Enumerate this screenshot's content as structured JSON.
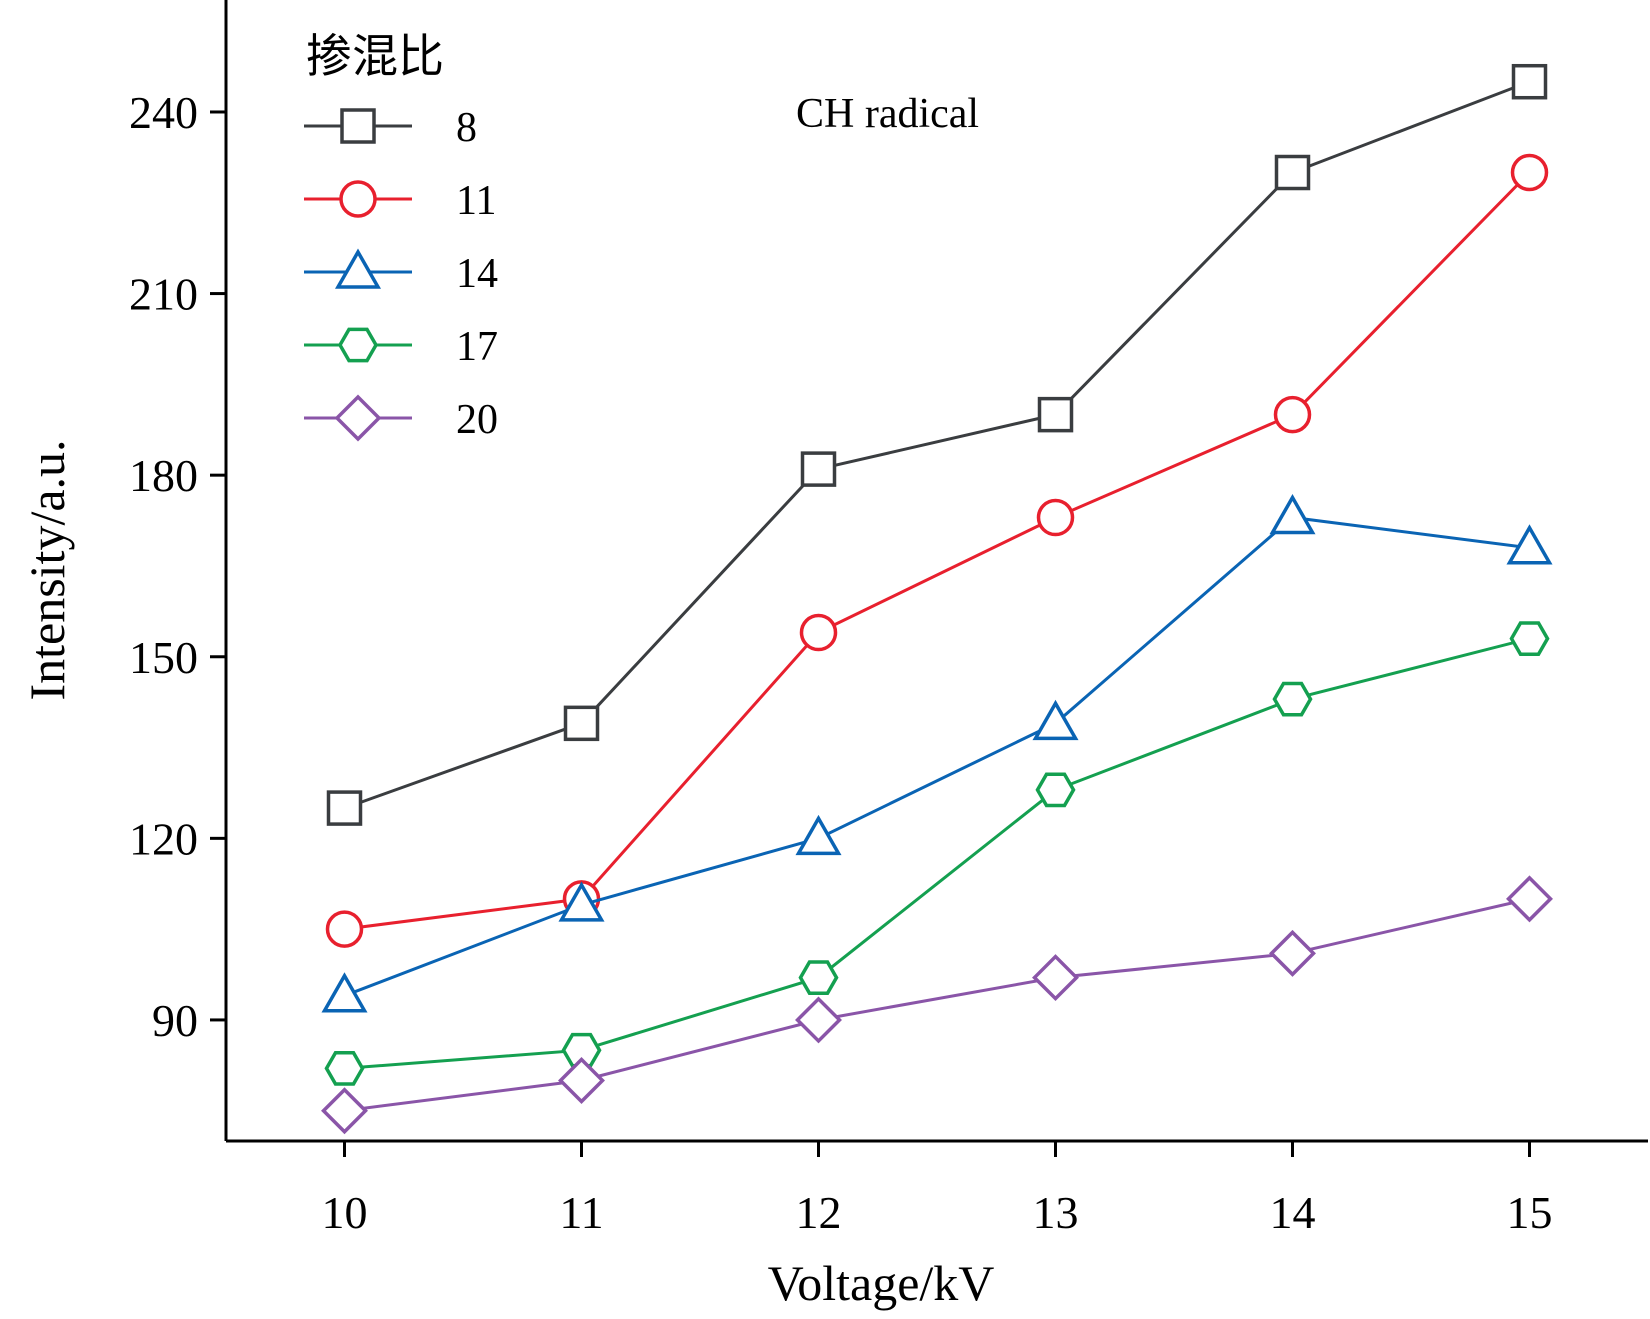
{
  "chart_data": {
    "type": "line",
    "xlabel": "Voltage/kV",
    "ylabel": "Intensity/a.u.",
    "x": [
      10,
      11,
      12,
      13,
      14,
      15
    ],
    "xticks": [
      "10",
      "11",
      "12",
      "13",
      "14",
      "15"
    ],
    "xlim": [
      9.5,
      15.5
    ],
    "yticks": [
      "90",
      "120",
      "150",
      "180",
      "210",
      "240"
    ],
    "ylim": [
      70,
      258.5
    ],
    "legend_title": "掺混比",
    "legend_position": "top-left",
    "annotation": "CH radical",
    "grid": false,
    "series": [
      {
        "name": "8",
        "marker": "square",
        "color": "#3a3d40",
        "values": [
          125,
          139,
          181,
          190,
          230,
          245
        ]
      },
      {
        "name": "11",
        "marker": "circle",
        "color": "#e8202e",
        "values": [
          105,
          110,
          154,
          173,
          190,
          230
        ]
      },
      {
        "name": "14",
        "marker": "triangle",
        "color": "#0a64b4",
        "values": [
          94,
          109,
          120,
          139,
          173,
          168
        ]
      },
      {
        "name": "17",
        "marker": "hexagon",
        "color": "#14a050",
        "values": [
          82,
          85,
          97,
          128,
          143,
          153
        ]
      },
      {
        "name": "20",
        "marker": "diamond",
        "color": "#8a55a8",
        "values": [
          75,
          80,
          90,
          97,
          101,
          110
        ]
      }
    ]
  }
}
